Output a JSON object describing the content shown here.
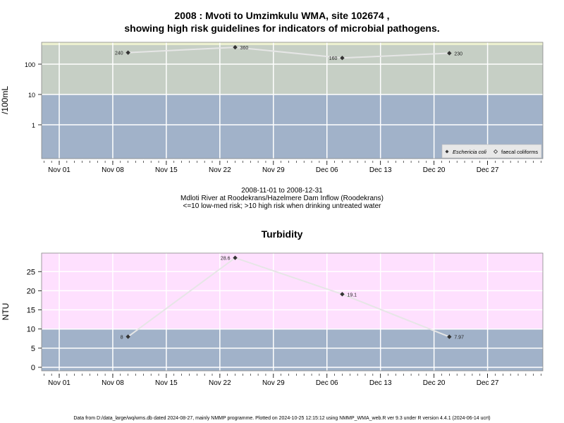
{
  "chart_data": [
    {
      "type": "line",
      "title": "2008 : Mvoti to Umzimkulu WMA, site 102674 ,",
      "title_line2": "showing high risk guidelines for indicators of microbial pathogens.",
      "ylabel": "/100mL",
      "scale": "log",
      "x": [
        "2008-11-10",
        "2008-11-24",
        "2008-12-08",
        "2008-12-22"
      ],
      "series": [
        {
          "name": "Eschericia coli",
          "values": [
            240,
            360,
            160,
            230
          ],
          "value_labels": [
            "240",
            "360",
            "160",
            "230"
          ]
        }
      ],
      "legend": [
        "Eschericia coli",
        "faecal coliforms"
      ],
      "legend_position": "bottom-right",
      "y_ticks": [
        "1",
        "10",
        "100"
      ],
      "x_ticks": [
        "Nov 01",
        "Nov 08",
        "Nov 15",
        "Nov 22",
        "Nov 29",
        "Dec 06",
        "Dec 13",
        "Dec 20",
        "Dec 27"
      ],
      "threshold": 10,
      "ylim": [
        0.1,
        500
      ],
      "colors": {
        "low_band": "#a1b2c9",
        "high_band": "#c6cfc5",
        "top_band": "#ecf0d0",
        "line": "#e6e6e6",
        "marker": "#333333"
      },
      "notes": [
        "2008-11-01 to 2008-12-31",
        "Mdloti River at Roodekrans/Hazelmere Dam Inflow (Roodekrans)",
        "<=10 low-med risk; >10 high risk when drinking untreated water"
      ]
    },
    {
      "type": "line",
      "title": "Turbidity",
      "ylabel": "NTU",
      "x": [
        "2008-11-10",
        "2008-11-24",
        "2008-12-08",
        "2008-12-22"
      ],
      "series": [
        {
          "name": "",
          "values": [
            8,
            28.6,
            19.1,
            7.97
          ],
          "value_labels": [
            "8",
            "28.6",
            "19.1",
            "7.97"
          ]
        }
      ],
      "y_ticks": [
        "0",
        "5",
        "10",
        "15",
        "20",
        "25"
      ],
      "x_ticks": [
        "Nov 01",
        "Nov 08",
        "Nov 15",
        "Nov 22",
        "Nov 29",
        "Dec 06",
        "Dec 13",
        "Dec 20",
        "Dec 27"
      ],
      "threshold": 10,
      "ylim": [
        -1.5,
        30
      ],
      "colors": {
        "low_band": "#a1b2c9",
        "high_band": "#fee0fe",
        "line": "#e6e6e6",
        "marker": "#333333"
      }
    }
  ],
  "footer": "Data from D:/data_large/wq/wms.db dated 2024-08-27, mainly NMMP programme. Plotted on 2024-10-25 12:15:12 using NMMP_WMA_web.R ver 9.3 under R version 4.4.1 (2024-06-14 ucrt)"
}
